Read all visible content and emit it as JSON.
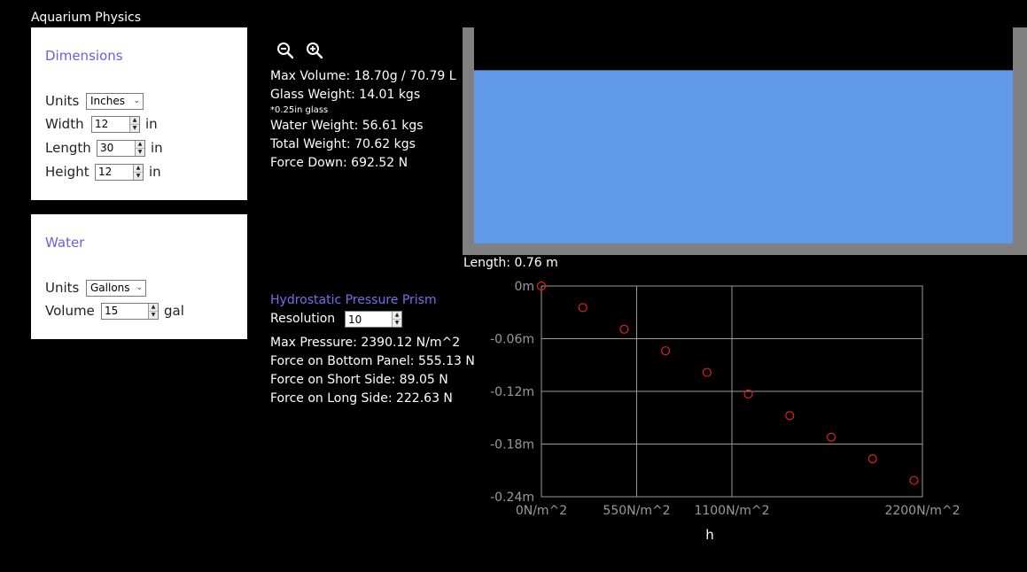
{
  "app": {
    "title": "Aquarium Physics"
  },
  "dimensions": {
    "title": "Dimensions",
    "units_label": "Units",
    "units_value": "Inches",
    "width_label": "Width",
    "width_value": "12",
    "width_unit": "in",
    "length_label": "Length",
    "length_value": "30",
    "length_unit": "in",
    "height_label": "Height",
    "height_value": "12",
    "height_unit": "in"
  },
  "water": {
    "title": "Water",
    "units_label": "Units",
    "units_value": "Gallons",
    "volume_label": "Volume",
    "volume_value": "15",
    "volume_unit": "gal"
  },
  "stats": {
    "max_volume": "Max Volume: 18.70g / 70.79 L",
    "glass_weight": "Glass Weight: 14.01 kgs",
    "glass_note": "*0.25in glass",
    "water_weight": "Water Weight: 56.61 kgs",
    "total_weight": "Total Weight: 70.62 kgs",
    "force_down": "Force Down: 692.52 N"
  },
  "tank": {
    "length_label": "Length: 0.76 m",
    "fill_fraction": 0.802,
    "glass_color": "#808080",
    "water_color": "#6199e9"
  },
  "pressure": {
    "title": "Hydrostatic Pressure Prism",
    "resolution_label": "Resolution",
    "resolution_value": "10",
    "max_pressure": "Max Pressure: 2390.12 N/m^2",
    "force_bottom": "Force on Bottom Panel: 555.13 N",
    "force_short": "Force on Short Side: 89.05 N",
    "force_long": "Force on Long Side: 222.63 N"
  },
  "chart_data": {
    "type": "scatter",
    "xlabel": "h",
    "x_ticks": [
      {
        "value": 0,
        "label": "0N/m^2"
      },
      {
        "value": 550,
        "label": "550N/m^2"
      },
      {
        "value": 1100,
        "label": "1100N/m^2"
      },
      {
        "value": 2200,
        "label": "2200N/m^2"
      }
    ],
    "y_ticks": [
      {
        "value": 0,
        "label": "0m"
      },
      {
        "value": -0.06,
        "label": "-0.06m"
      },
      {
        "value": -0.12,
        "label": "-0.12m"
      },
      {
        "value": -0.18,
        "label": "-0.18m"
      },
      {
        "value": -0.24,
        "label": "-0.24m"
      }
    ],
    "xlim": [
      0,
      2200
    ],
    "ylim": [
      -0.24,
      0
    ],
    "grid": true,
    "marker_color": "#e02020",
    "points": [
      {
        "x": 0,
        "y": 0.0
      },
      {
        "x": 239,
        "y": -0.0246
      },
      {
        "x": 478,
        "y": -0.0492
      },
      {
        "x": 717,
        "y": -0.0738
      },
      {
        "x": 956,
        "y": -0.0984
      },
      {
        "x": 1195,
        "y": -0.123
      },
      {
        "x": 1434,
        "y": -0.1476
      },
      {
        "x": 1673,
        "y": -0.1722
      },
      {
        "x": 1912,
        "y": -0.1968
      },
      {
        "x": 2151,
        "y": -0.2214
      }
    ]
  }
}
